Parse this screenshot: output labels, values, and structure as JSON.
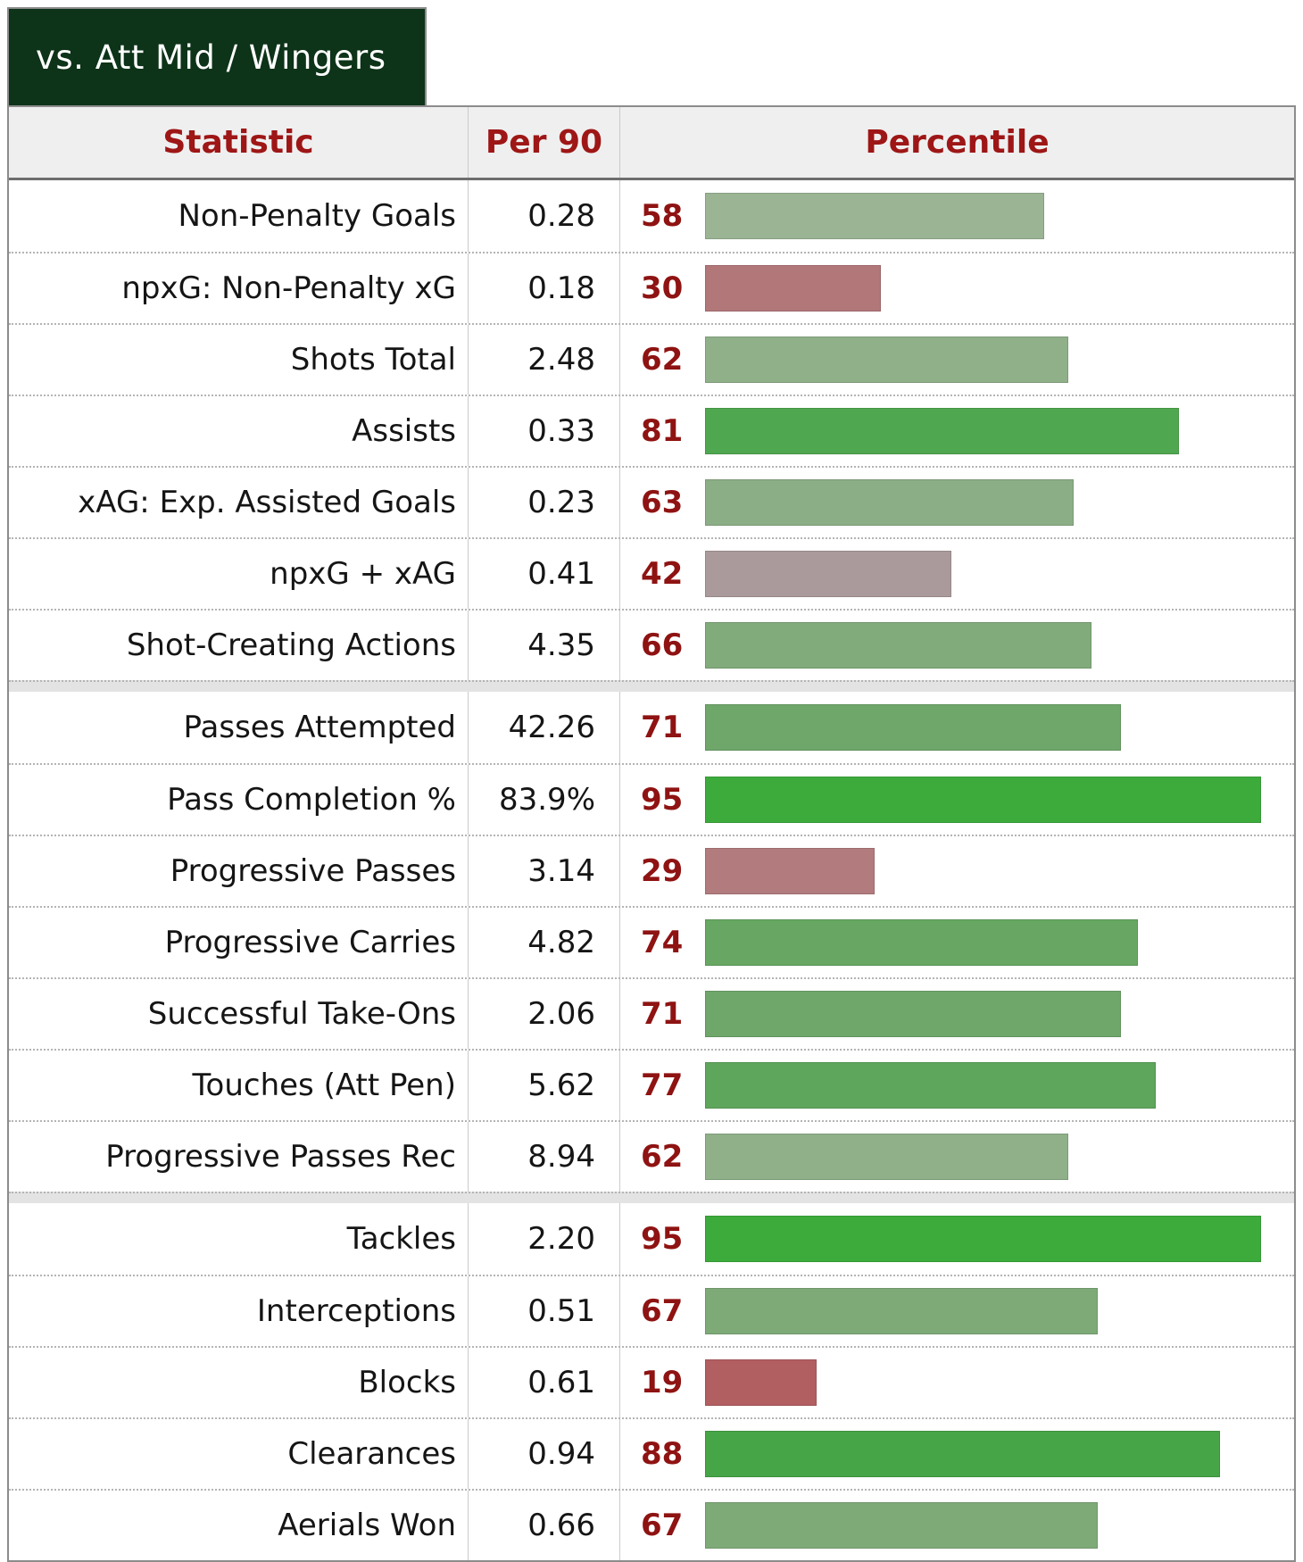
{
  "tab": {
    "label": "vs. Att Mid / Wingers"
  },
  "table": {
    "columns": [
      "Statistic",
      "Per 90",
      "Percentile"
    ]
  },
  "chart_data": {
    "type": "bar",
    "title": "vs. Att Mid / Wingers",
    "columns": [
      "Statistic",
      "Per 90",
      "Percentile"
    ],
    "xlim": [
      0,
      100
    ],
    "orientation": "horizontal",
    "colors": {
      "high_green": "#3cab3c",
      "low_red": "#b25f61",
      "neutral_gray": "#ab9a9c"
    },
    "groups": [
      {
        "rows": [
          {
            "statistic": "Non-Penalty Goals",
            "per90": "0.28",
            "percentile": 58,
            "bar_color": "#9ab494"
          },
          {
            "statistic": "npxG: Non-Penalty xG",
            "per90": "0.18",
            "percentile": 30,
            "bar_color": "#b17779"
          },
          {
            "statistic": "Shots Total",
            "per90": "2.48",
            "percentile": 62,
            "bar_color": "#8fb089"
          },
          {
            "statistic": "Assists",
            "per90": "0.33",
            "percentile": 81,
            "bar_color": "#4fa84f"
          },
          {
            "statistic": "xAG: Exp. Assisted Goals",
            "per90": "0.23",
            "percentile": 63,
            "bar_color": "#8cae86"
          },
          {
            "statistic": "npxG + xAG",
            "per90": "0.41",
            "percentile": 42,
            "bar_color": "#ab9a9c"
          },
          {
            "statistic": "Shot-Creating Actions",
            "per90": "4.35",
            "percentile": 66,
            "bar_color": "#82ab7c"
          }
        ]
      },
      {
        "rows": [
          {
            "statistic": "Passes Attempted",
            "per90": "42.26",
            "percentile": 71,
            "bar_color": "#6fa76a"
          },
          {
            "statistic": "Pass Completion %",
            "per90": "83.9%",
            "percentile": 95,
            "bar_color": "#3cab3c"
          },
          {
            "statistic": "Progressive Passes",
            "per90": "3.14",
            "percentile": 29,
            "bar_color": "#b27b7d"
          },
          {
            "statistic": "Progressive Carries",
            "per90": "4.82",
            "percentile": 74,
            "bar_color": "#67a763"
          },
          {
            "statistic": "Successful Take-Ons",
            "per90": "2.06",
            "percentile": 71,
            "bar_color": "#6fa76a"
          },
          {
            "statistic": "Touches (Att Pen)",
            "per90": "5.62",
            "percentile": 77,
            "bar_color": "#5ea65c"
          },
          {
            "statistic": "Progressive Passes Rec",
            "per90": "8.94",
            "percentile": 62,
            "bar_color": "#8fb089"
          }
        ]
      },
      {
        "rows": [
          {
            "statistic": "Tackles",
            "per90": "2.20",
            "percentile": 95,
            "bar_color": "#3cab3c"
          },
          {
            "statistic": "Interceptions",
            "per90": "0.51",
            "percentile": 67,
            "bar_color": "#7eaa78"
          },
          {
            "statistic": "Blocks",
            "per90": "0.61",
            "percentile": 19,
            "bar_color": "#b25f61"
          },
          {
            "statistic": "Clearances",
            "per90": "0.94",
            "percentile": 88,
            "bar_color": "#46a546"
          },
          {
            "statistic": "Aerials Won",
            "per90": "0.66",
            "percentile": 67,
            "bar_color": "#7eaa78"
          }
        ]
      }
    ]
  }
}
